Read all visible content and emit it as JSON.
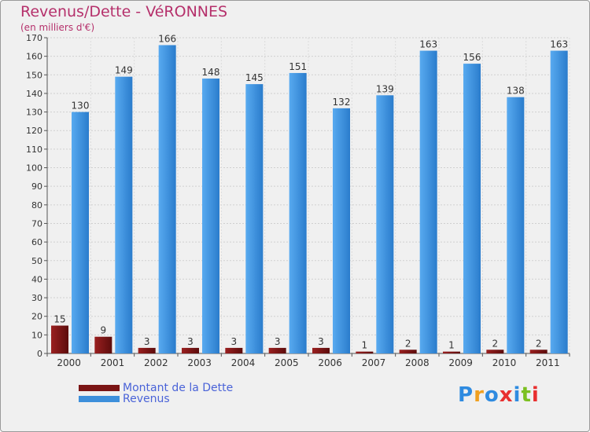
{
  "chart_data": {
    "type": "bar",
    "title": "Revenus/Dette - VéRONNES",
    "subtitle": "(en milliers d'€)",
    "categories": [
      "2000",
      "2001",
      "2002",
      "2003",
      "2004",
      "2005",
      "2006",
      "2007",
      "2008",
      "2009",
      "2010",
      "2011"
    ],
    "series": [
      {
        "name": "Montant de la Dette",
        "color": "#7a1414",
        "values": [
          15,
          9,
          3,
          3,
          3,
          3,
          3,
          1,
          2,
          1,
          2,
          2
        ]
      },
      {
        "name": "Revenus",
        "color": "#3d8fdb",
        "values": [
          130,
          149,
          166,
          148,
          145,
          151,
          132,
          139,
          163,
          156,
          138,
          163
        ]
      }
    ],
    "ylim": [
      0,
      170
    ],
    "yticks": [
      0,
      10,
      20,
      30,
      40,
      50,
      60,
      70,
      80,
      90,
      100,
      110,
      120,
      130,
      140,
      150,
      160,
      170
    ],
    "grid": true,
    "legend": "bottom-left"
  },
  "logo": {
    "letters": [
      "P",
      "r",
      "o",
      "x",
      "i",
      "t",
      "i"
    ],
    "colors": [
      "#2f8be0",
      "#f0a020",
      "#2f8be0",
      "#e83030",
      "#2f8be0",
      "#7cc020",
      "#e83030"
    ]
  }
}
